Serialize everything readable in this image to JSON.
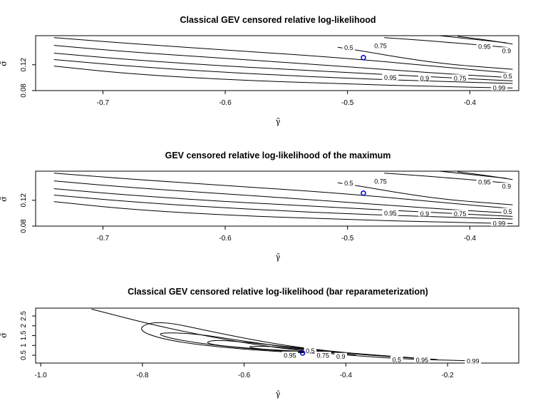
{
  "chart_data": [
    {
      "type": "contour",
      "title": "Classical GEV censored relative log-likelihood",
      "xlabel": "γ̃",
      "ylabel": "σ̃",
      "xlim": [
        -0.755,
        -0.36
      ],
      "ylim": [
        0.08,
        0.165
      ],
      "x_ticks": [
        -0.7,
        -0.6,
        -0.5,
        -0.4
      ],
      "x_tick_labels": [
        "-0.7",
        "-0.6",
        "-0.5",
        "-0.4"
      ],
      "y_ticks": [
        0.08,
        0.12
      ],
      "y_tick_labels": [
        "0.08",
        "0.12"
      ],
      "maximum": {
        "x": -0.487,
        "y": 0.131
      },
      "contours": [
        {
          "level": "0.99",
          "points": [
            [
              -0.74,
              0.118
            ],
            [
              -0.68,
              0.106
            ],
            [
              -0.6,
              0.097
            ],
            [
              -0.5,
              0.09
            ],
            [
              -0.42,
              0.086
            ],
            [
              -0.365,
              0.084
            ]
          ]
        },
        {
          "level": "0.95",
          "points": [
            [
              -0.74,
              0.128
            ],
            [
              -0.68,
              0.118
            ],
            [
              -0.6,
              0.108
            ],
            [
              -0.5,
              0.099
            ],
            [
              -0.42,
              0.094
            ],
            [
              -0.365,
              0.091
            ]
          ]
        },
        {
          "level": "0.9",
          "points": [
            [
              -0.74,
              0.138
            ],
            [
              -0.68,
              0.128
            ],
            [
              -0.6,
              0.118
            ],
            [
              -0.5,
              0.108
            ],
            [
              -0.42,
              0.1
            ],
            [
              -0.365,
              0.095
            ]
          ]
        },
        {
          "level": "0.75",
          "points": [
            [
              -0.74,
              0.15
            ],
            [
              -0.68,
              0.14
            ],
            [
              -0.6,
              0.13
            ],
            [
              -0.5,
              0.117
            ],
            [
              -0.42,
              0.106
            ],
            [
              -0.365,
              0.1
            ]
          ]
        },
        {
          "level": "0.5",
          "points": [
            [
              -0.74,
              0.162
            ],
            [
              -0.68,
              0.153
            ],
            [
              -0.6,
              0.143
            ],
            [
              -0.5,
              0.13
            ],
            [
              -0.42,
              0.116
            ],
            [
              -0.365,
              0.107
            ]
          ]
        },
        {
          "level": "0.5",
          "points": [
            [
              -0.508,
              0.147
            ],
            [
              -0.487,
              0.141
            ],
            [
              -0.46,
              0.132
            ],
            [
              -0.42,
              0.121
            ],
            [
              -0.365,
              0.113
            ]
          ]
        },
        {
          "level": "0.75",
          "points": [
            [
              -0.47,
              0.162
            ],
            [
              -0.44,
              0.158
            ],
            [
              -0.4,
              0.152
            ],
            [
              -0.365,
              0.146
            ]
          ]
        },
        {
          "level": "0.95",
          "points": [
            [
              -0.43,
              0.166
            ],
            [
              -0.4,
              0.16
            ],
            [
              -0.37,
              0.154
            ]
          ]
        },
        {
          "level": "0.9",
          "points": [
            [
              -0.41,
              0.164
            ],
            [
              -0.385,
              0.158
            ],
            [
              -0.365,
              0.152
            ]
          ]
        }
      ],
      "contour_labels": [
        {
          "text": "0.5",
          "x": -0.499,
          "y": 0.146
        },
        {
          "text": "0.75",
          "x": -0.473,
          "y": 0.149
        },
        {
          "text": "0.95",
          "x": -0.388,
          "y": 0.148
        },
        {
          "text": "0.9",
          "x": -0.37,
          "y": 0.141
        },
        {
          "text": "0.5",
          "x": -0.369,
          "y": 0.102
        },
        {
          "text": "0.75",
          "x": -0.408,
          "y": 0.099
        },
        {
          "text": "0.9",
          "x": -0.437,
          "y": 0.099
        },
        {
          "text": "0.95",
          "x": -0.465,
          "y": 0.1
        },
        {
          "text": "0.99",
          "x": -0.376,
          "y": 0.084
        }
      ]
    },
    {
      "type": "contour",
      "title": "GEV censored relative log-likelihood of the maximum",
      "xlabel": "γ̃",
      "ylabel": "σ̃",
      "xlim": [
        -0.755,
        -0.36
      ],
      "ylim": [
        0.08,
        0.165
      ],
      "x_ticks": [
        -0.7,
        -0.6,
        -0.5,
        -0.4
      ],
      "x_tick_labels": [
        "-0.7",
        "-0.6",
        "-0.5",
        "-0.4"
      ],
      "y_ticks": [
        0.08,
        0.12
      ],
      "y_tick_labels": [
        "0.08",
        "0.12"
      ],
      "maximum": {
        "x": -0.487,
        "y": 0.131
      },
      "contours": [
        {
          "level": "0.99",
          "points": [
            [
              -0.74,
              0.118
            ],
            [
              -0.68,
              0.106
            ],
            [
              -0.6,
              0.097
            ],
            [
              -0.5,
              0.09
            ],
            [
              -0.42,
              0.086
            ],
            [
              -0.365,
              0.084
            ]
          ]
        },
        {
          "level": "0.95",
          "points": [
            [
              -0.74,
              0.128
            ],
            [
              -0.68,
              0.118
            ],
            [
              -0.6,
              0.108
            ],
            [
              -0.5,
              0.099
            ],
            [
              -0.42,
              0.094
            ],
            [
              -0.365,
              0.091
            ]
          ]
        },
        {
          "level": "0.9",
          "points": [
            [
              -0.74,
              0.138
            ],
            [
              -0.68,
              0.128
            ],
            [
              -0.6,
              0.118
            ],
            [
              -0.5,
              0.108
            ],
            [
              -0.42,
              0.1
            ],
            [
              -0.365,
              0.095
            ]
          ]
        },
        {
          "level": "0.75",
          "points": [
            [
              -0.74,
              0.15
            ],
            [
              -0.68,
              0.14
            ],
            [
              -0.6,
              0.13
            ],
            [
              -0.5,
              0.117
            ],
            [
              -0.42,
              0.106
            ],
            [
              -0.365,
              0.1
            ]
          ]
        },
        {
          "level": "0.5",
          "points": [
            [
              -0.74,
              0.162
            ],
            [
              -0.68,
              0.153
            ],
            [
              -0.6,
              0.143
            ],
            [
              -0.5,
              0.13
            ],
            [
              -0.42,
              0.116
            ],
            [
              -0.365,
              0.107
            ]
          ]
        },
        {
          "level": "0.5",
          "points": [
            [
              -0.508,
              0.147
            ],
            [
              -0.487,
              0.141
            ],
            [
              -0.46,
              0.132
            ],
            [
              -0.42,
              0.121
            ],
            [
              -0.365,
              0.113
            ]
          ]
        },
        {
          "level": "0.75",
          "points": [
            [
              -0.47,
              0.162
            ],
            [
              -0.44,
              0.158
            ],
            [
              -0.4,
              0.152
            ],
            [
              -0.365,
              0.146
            ]
          ]
        },
        {
          "level": "0.95",
          "points": [
            [
              -0.43,
              0.166
            ],
            [
              -0.4,
              0.16
            ],
            [
              -0.37,
              0.154
            ]
          ]
        },
        {
          "level": "0.9",
          "points": [
            [
              -0.41,
              0.164
            ],
            [
              -0.385,
              0.158
            ],
            [
              -0.365,
              0.152
            ]
          ]
        }
      ],
      "contour_labels": [
        {
          "text": "0.5",
          "x": -0.499,
          "y": 0.146
        },
        {
          "text": "0.75",
          "x": -0.473,
          "y": 0.149
        },
        {
          "text": "0.95",
          "x": -0.388,
          "y": 0.148
        },
        {
          "text": "0.9",
          "x": -0.37,
          "y": 0.141
        },
        {
          "text": "0.5",
          "x": -0.369,
          "y": 0.102
        },
        {
          "text": "0.75",
          "x": -0.408,
          "y": 0.099
        },
        {
          "text": "0.9",
          "x": -0.437,
          "y": 0.099
        },
        {
          "text": "0.95",
          "x": -0.465,
          "y": 0.1
        },
        {
          "text": "0.99",
          "x": -0.376,
          "y": 0.084
        }
      ]
    },
    {
      "type": "contour",
      "title": "Classical GEV censored relative log-likelihood (bar reparameterization)",
      "xlabel": "γ̄",
      "ylabel": "σ̄",
      "xlim": [
        -1.01,
        -0.06
      ],
      "ylim": [
        0.1,
        2.9
      ],
      "x_ticks": [
        -1.0,
        -0.8,
        -0.6,
        -0.4,
        -0.2
      ],
      "x_tick_labels": [
        "-1.0",
        "-0.8",
        "-0.6",
        "-0.4",
        "-0.2"
      ],
      "y_ticks": [
        0.5,
        1.0,
        1.5,
        2.0,
        2.5
      ],
      "y_tick_labels": [
        "0.5",
        "1",
        "1.5",
        "2",
        "2.5"
      ],
      "maximum": {
        "x": -0.485,
        "y": 0.61
      },
      "contours": [
        {
          "level": "0.99",
          "points": [
            [
              -0.9,
              2.85
            ],
            [
              -0.78,
              2.05
            ],
            [
              -0.68,
              1.5
            ],
            [
              -0.58,
              1.05
            ],
            [
              -0.48,
              0.7
            ],
            [
              -0.38,
              0.47
            ],
            [
              -0.28,
              0.3
            ],
            [
              -0.16,
              0.22
            ]
          ]
        },
        {
          "level": "0.95",
          "points": [
            [
              -0.44,
              0.56
            ],
            [
              -0.6,
              0.78
            ],
            [
              -0.75,
              1.22
            ],
            [
              -0.815,
              1.82
            ],
            [
              -0.77,
              2.3
            ],
            [
              -0.65,
              1.62
            ],
            [
              -0.54,
              1.08
            ],
            [
              -0.44,
              0.72
            ],
            [
              -0.34,
              0.5
            ],
            [
              -0.22,
              0.28
            ]
          ]
        },
        {
          "level": "0.9",
          "points": [
            [
              -0.44,
              0.6
            ],
            [
              -0.6,
              0.83
            ],
            [
              -0.73,
              1.25
            ],
            [
              -0.78,
              1.65
            ],
            [
              -0.7,
              1.62
            ],
            [
              -0.6,
              1.22
            ],
            [
              -0.5,
              0.85
            ],
            [
              -0.4,
              0.6
            ],
            [
              -0.3,
              0.4
            ],
            [
              -0.22,
              0.28
            ]
          ]
        },
        {
          "level": "0.75",
          "points": [
            [
              -0.43,
              0.62
            ],
            [
              -0.58,
              0.82
            ],
            [
              -0.68,
              1.08
            ],
            [
              -0.66,
              1.3
            ],
            [
              -0.58,
              1.12
            ],
            [
              -0.5,
              0.9
            ],
            [
              -0.42,
              0.66
            ],
            [
              -0.34,
              0.48
            ],
            [
              -0.3,
              0.42
            ]
          ]
        },
        {
          "level": "0.5",
          "points": [
            [
              -0.47,
              0.63
            ],
            [
              -0.56,
              0.78
            ],
            [
              -0.6,
              0.95
            ],
            [
              -0.55,
              0.96
            ],
            [
              -0.5,
              0.82
            ],
            [
              -0.44,
              0.66
            ],
            [
              -0.38,
              0.5
            ]
          ]
        }
      ],
      "contour_labels": [
        {
          "text": "0.95",
          "x": -0.51,
          "y": 0.49
        },
        {
          "text": "0.75",
          "x": -0.445,
          "y": 0.48
        },
        {
          "text": "0.9",
          "x": -0.41,
          "y": 0.42
        },
        {
          "text": "0.5",
          "x": -0.47,
          "y": 0.72
        },
        {
          "text": "0.95",
          "x": -0.25,
          "y": 0.24
        },
        {
          "text": "0.99",
          "x": -0.15,
          "y": 0.2
        },
        {
          "text": "0.5",
          "x": -0.3,
          "y": 0.26
        }
      ]
    }
  ]
}
